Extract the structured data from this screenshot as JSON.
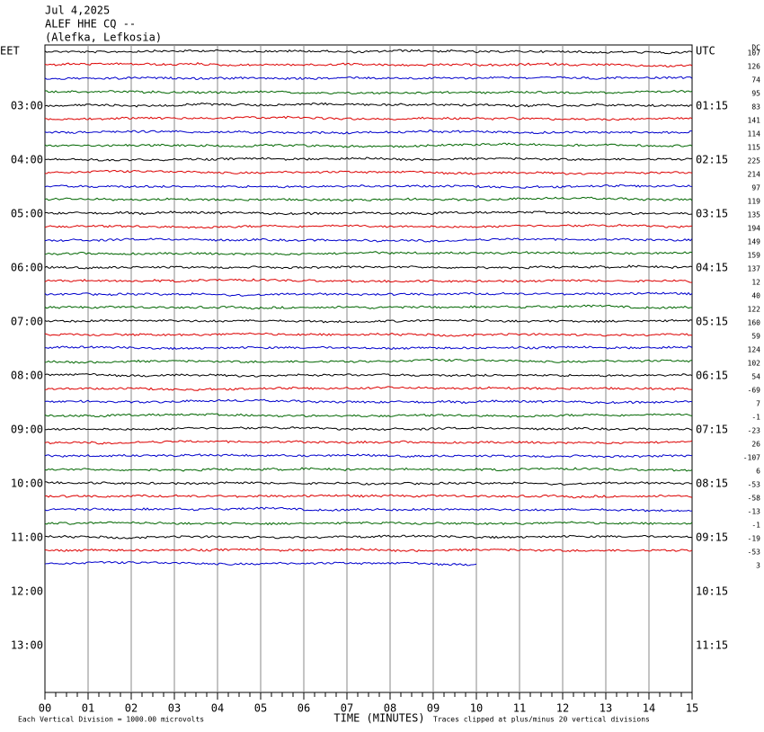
{
  "header": {
    "date": "Jul 4,2025",
    "station": "ALEF HHE CQ --",
    "location": "(Alefka, Lefkosia)"
  },
  "left_labels": [
    "EET",
    "03:00",
    "04:00",
    "05:00",
    "06:00",
    "07:00",
    "08:00",
    "09:00",
    "10:00",
    "11:00",
    "12:00",
    "13:00"
  ],
  "right_labels": [
    "UTC",
    "01:15",
    "02:15",
    "03:15",
    "04:15",
    "05:15",
    "06:15",
    "07:15",
    "08:15",
    "09:15",
    "10:15",
    "11:15"
  ],
  "dc_title": "DC",
  "dc_offsets": [
    107,
    126,
    74,
    95,
    83,
    141,
    114,
    115,
    225,
    214,
    97,
    119,
    135,
    194,
    149,
    159,
    137,
    12,
    40,
    122,
    160,
    59,
    124,
    102,
    54,
    -69,
    7,
    -1,
    -23,
    26,
    -107,
    6,
    -53,
    -58,
    -13,
    -1,
    -19,
    -53,
    3
  ],
  "trace_colors": [
    "#000000",
    "#dd0000",
    "#0000cc",
    "#006600"
  ],
  "x_ticks": [
    "00",
    "01",
    "02",
    "03",
    "04",
    "05",
    "06",
    "07",
    "08",
    "09",
    "10",
    "11",
    "12",
    "13",
    "14",
    "15"
  ],
  "x_axis_title": "TIME (MINUTES)",
  "scale_note": "Each Vertical Division = 1000.00 microvolts",
  "clip_note": "Traces clipped at plus/minus 20 vertical divisions"
}
